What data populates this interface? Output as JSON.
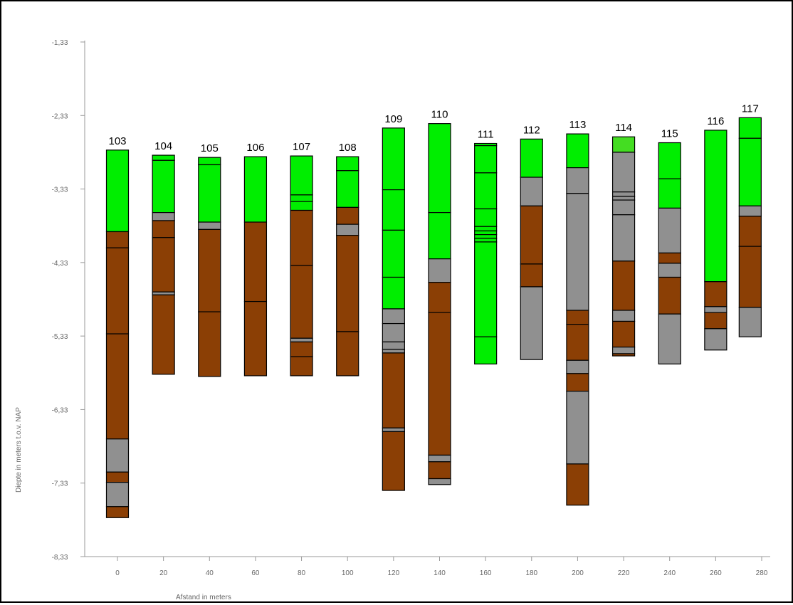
{
  "chart_data": {
    "type": "bar",
    "xlabel": "Afstand in meters",
    "ylabel": "Diepte in meters t.o.v. NAP",
    "y_ticks": [
      "-1,33",
      "-2,33",
      "-3,33",
      "-4,33",
      "-5,33",
      "-6,33",
      "-7,33",
      "-8,33"
    ],
    "x_ticks": [
      "0",
      "20",
      "40",
      "60",
      "80",
      "100",
      "120",
      "140",
      "160",
      "180",
      "200",
      "220",
      "240",
      "260",
      "280"
    ],
    "ylim": [
      -8.33,
      -1.33
    ],
    "xlim": [
      0,
      280
    ],
    "grid": false,
    "legend": "none",
    "colors": {
      "green": "#00ee00",
      "lightgreen": "#44dd22",
      "brown": "#8b3f05",
      "gray": "#909090"
    },
    "borings": [
      {
        "name": "103",
        "x": 0,
        "segments": [
          {
            "top": -2.8,
            "bottom": -3.91,
            "soil": "green"
          },
          {
            "top": -3.91,
            "bottom": -4.13,
            "soil": "brown"
          },
          {
            "top": -4.13,
            "bottom": -5.3,
            "soil": "brown"
          },
          {
            "top": -5.3,
            "bottom": -6.73,
            "soil": "brown"
          },
          {
            "top": -6.73,
            "bottom": -7.18,
            "soil": "gray"
          },
          {
            "top": -7.18,
            "bottom": -7.32,
            "soil": "brown"
          },
          {
            "top": -7.32,
            "bottom": -7.65,
            "soil": "gray"
          },
          {
            "top": -7.65,
            "bottom": -7.8,
            "soil": "brown"
          }
        ]
      },
      {
        "name": "104",
        "x": 20,
        "segments": [
          {
            "top": -2.87,
            "bottom": -2.94,
            "soil": "green"
          },
          {
            "top": -2.94,
            "bottom": -3.65,
            "soil": "green"
          },
          {
            "top": -3.65,
            "bottom": -3.76,
            "soil": "gray"
          },
          {
            "top": -3.76,
            "bottom": -3.99,
            "soil": "brown"
          },
          {
            "top": -3.99,
            "bottom": -4.73,
            "soil": "brown"
          },
          {
            "top": -4.73,
            "bottom": -4.77,
            "soil": "gray"
          },
          {
            "top": -4.77,
            "bottom": -5.85,
            "soil": "brown"
          }
        ]
      },
      {
        "name": "105",
        "x": 40,
        "segments": [
          {
            "top": -2.9,
            "bottom": -3.0,
            "soil": "green"
          },
          {
            "top": -3.0,
            "bottom": -3.78,
            "soil": "green"
          },
          {
            "top": -3.78,
            "bottom": -3.88,
            "soil": "gray"
          },
          {
            "top": -3.88,
            "bottom": -5.0,
            "soil": "brown"
          },
          {
            "top": -5.0,
            "bottom": -5.88,
            "soil": "brown"
          }
        ]
      },
      {
        "name": "106",
        "x": 60,
        "segments": [
          {
            "top": -2.89,
            "bottom": -3.78,
            "soil": "green"
          },
          {
            "top": -3.78,
            "bottom": -4.86,
            "soil": "brown"
          },
          {
            "top": -4.86,
            "bottom": -5.87,
            "soil": "brown"
          }
        ]
      },
      {
        "name": "107",
        "x": 80,
        "segments": [
          {
            "top": -2.88,
            "bottom": -3.41,
            "soil": "green"
          },
          {
            "top": -3.41,
            "bottom": -3.5,
            "soil": "green"
          },
          {
            "top": -3.5,
            "bottom": -3.62,
            "soil": "green"
          },
          {
            "top": -3.62,
            "bottom": -4.37,
            "soil": "brown"
          },
          {
            "top": -4.37,
            "bottom": -5.36,
            "soil": "brown"
          },
          {
            "top": -5.36,
            "bottom": -5.41,
            "soil": "gray"
          },
          {
            "top": -5.41,
            "bottom": -5.61,
            "soil": "brown"
          },
          {
            "top": -5.61,
            "bottom": -5.87,
            "soil": "brown"
          }
        ]
      },
      {
        "name": "108",
        "x": 100,
        "segments": [
          {
            "top": -2.89,
            "bottom": -3.08,
            "soil": "green"
          },
          {
            "top": -3.08,
            "bottom": -3.58,
            "soil": "green"
          },
          {
            "top": -3.58,
            "bottom": -3.81,
            "soil": "brown"
          },
          {
            "top": -3.81,
            "bottom": -3.96,
            "soil": "gray"
          },
          {
            "top": -3.96,
            "bottom": -5.27,
            "soil": "brown"
          },
          {
            "top": -5.27,
            "bottom": -5.87,
            "soil": "brown"
          }
        ]
      },
      {
        "name": "109",
        "x": 120,
        "segments": [
          {
            "top": -2.5,
            "bottom": -3.34,
            "soil": "green"
          },
          {
            "top": -3.34,
            "bottom": -3.89,
            "soil": "green"
          },
          {
            "top": -3.89,
            "bottom": -4.53,
            "soil": "green"
          },
          {
            "top": -4.53,
            "bottom": -4.96,
            "soil": "green"
          },
          {
            "top": -4.96,
            "bottom": -5.16,
            "soil": "gray"
          },
          {
            "top": -5.16,
            "bottom": -5.41,
            "soil": "gray"
          },
          {
            "top": -5.41,
            "bottom": -5.51,
            "soil": "gray"
          },
          {
            "top": -5.51,
            "bottom": -5.56,
            "soil": "gray"
          },
          {
            "top": -5.56,
            "bottom": -6.58,
            "soil": "brown"
          },
          {
            "top": -6.58,
            "bottom": -6.63,
            "soil": "gray"
          },
          {
            "top": -6.63,
            "bottom": -7.43,
            "soil": "brown"
          }
        ]
      },
      {
        "name": "110",
        "x": 140,
        "segments": [
          {
            "top": -2.44,
            "bottom": -3.65,
            "soil": "green"
          },
          {
            "top": -3.65,
            "bottom": -4.28,
            "soil": "green"
          },
          {
            "top": -4.28,
            "bottom": -4.6,
            "soil": "gray"
          },
          {
            "top": -4.6,
            "bottom": -5.01,
            "soil": "brown"
          },
          {
            "top": -5.01,
            "bottom": -6.95,
            "soil": "brown"
          },
          {
            "top": -6.95,
            "bottom": -7.04,
            "soil": "gray"
          },
          {
            "top": -7.04,
            "bottom": -7.27,
            "soil": "brown"
          },
          {
            "top": -7.27,
            "bottom": -7.35,
            "soil": "gray"
          }
        ]
      },
      {
        "name": "111",
        "x": 160,
        "segments": [
          {
            "top": -2.71,
            "bottom": -2.74,
            "soil": "green"
          },
          {
            "top": -2.74,
            "bottom": -3.11,
            "soil": "green"
          },
          {
            "top": -3.11,
            "bottom": -3.6,
            "soil": "green"
          },
          {
            "top": -3.6,
            "bottom": -3.84,
            "soil": "green"
          },
          {
            "top": -3.84,
            "bottom": -3.9,
            "soil": "green"
          },
          {
            "top": -3.9,
            "bottom": -3.95,
            "soil": "green"
          },
          {
            "top": -3.95,
            "bottom": -4.0,
            "soil": "green"
          },
          {
            "top": -4.0,
            "bottom": -4.05,
            "soil": "green"
          },
          {
            "top": -4.05,
            "bottom": -5.34,
            "soil": "green"
          },
          {
            "top": -5.34,
            "bottom": -5.71,
            "soil": "green"
          }
        ]
      },
      {
        "name": "112",
        "x": 180,
        "segments": [
          {
            "top": -2.65,
            "bottom": -3.17,
            "soil": "green"
          },
          {
            "top": -3.17,
            "bottom": -3.56,
            "soil": "gray"
          },
          {
            "top": -3.56,
            "bottom": -4.35,
            "soil": "brown"
          },
          {
            "top": -4.35,
            "bottom": -4.66,
            "soil": "brown"
          },
          {
            "top": -4.66,
            "bottom": -5.65,
            "soil": "gray"
          }
        ]
      },
      {
        "name": "113",
        "x": 200,
        "segments": [
          {
            "top": -2.58,
            "bottom": -3.04,
            "soil": "green"
          },
          {
            "top": -3.04,
            "bottom": -3.39,
            "soil": "gray"
          },
          {
            "top": -3.39,
            "bottom": -4.98,
            "soil": "gray"
          },
          {
            "top": -4.98,
            "bottom": -5.17,
            "soil": "brown"
          },
          {
            "top": -5.17,
            "bottom": -5.66,
            "soil": "brown"
          },
          {
            "top": -5.66,
            "bottom": -5.84,
            "soil": "gray"
          },
          {
            "top": -5.84,
            "bottom": -6.08,
            "soil": "brown"
          },
          {
            "top": -6.08,
            "bottom": -7.07,
            "soil": "gray"
          },
          {
            "top": -7.07,
            "bottom": -7.63,
            "soil": "brown"
          }
        ]
      },
      {
        "name": "114",
        "x": 220,
        "segments": [
          {
            "top": -2.62,
            "bottom": -2.83,
            "soil": "lightgreen"
          },
          {
            "top": -2.83,
            "bottom": -3.37,
            "soil": "gray"
          },
          {
            "top": -3.37,
            "bottom": -3.43,
            "soil": "gray"
          },
          {
            "top": -3.43,
            "bottom": -3.48,
            "soil": "gray"
          },
          {
            "top": -3.48,
            "bottom": -3.68,
            "soil": "gray"
          },
          {
            "top": -3.68,
            "bottom": -4.31,
            "soil": "gray"
          },
          {
            "top": -4.31,
            "bottom": -4.98,
            "soil": "brown"
          },
          {
            "top": -4.98,
            "bottom": -5.13,
            "soil": "gray"
          },
          {
            "top": -5.13,
            "bottom": -5.48,
            "soil": "brown"
          },
          {
            "top": -5.48,
            "bottom": -5.57,
            "soil": "gray"
          },
          {
            "top": -5.57,
            "bottom": -5.6,
            "soil": "brown"
          }
        ]
      },
      {
        "name": "115",
        "x": 240,
        "segments": [
          {
            "top": -2.7,
            "bottom": -3.19,
            "soil": "green"
          },
          {
            "top": -3.19,
            "bottom": -3.59,
            "soil": "green"
          },
          {
            "top": -3.59,
            "bottom": -4.2,
            "soil": "gray"
          },
          {
            "top": -4.2,
            "bottom": -4.34,
            "soil": "brown"
          },
          {
            "top": -4.34,
            "bottom": -4.53,
            "soil": "gray"
          },
          {
            "top": -4.53,
            "bottom": -5.03,
            "soil": "brown"
          },
          {
            "top": -5.03,
            "bottom": -5.71,
            "soil": "gray"
          }
        ]
      },
      {
        "name": "116",
        "x": 260,
        "segments": [
          {
            "top": -2.53,
            "bottom": -4.59,
            "soil": "green"
          },
          {
            "top": -4.59,
            "bottom": -4.93,
            "soil": "brown"
          },
          {
            "top": -4.93,
            "bottom": -5.01,
            "soil": "gray"
          },
          {
            "top": -5.01,
            "bottom": -5.23,
            "soil": "brown"
          },
          {
            "top": -5.23,
            "bottom": -5.52,
            "soil": "gray"
          }
        ]
      },
      {
        "name": "117",
        "x": 275,
        "segments": [
          {
            "top": -2.36,
            "bottom": -2.64,
            "soil": "green"
          },
          {
            "top": -2.64,
            "bottom": -3.56,
            "soil": "green"
          },
          {
            "top": -3.56,
            "bottom": -3.7,
            "soil": "gray"
          },
          {
            "top": -3.7,
            "bottom": -4.11,
            "soil": "brown"
          },
          {
            "top": -4.11,
            "bottom": -4.94,
            "soil": "brown"
          },
          {
            "top": -4.94,
            "bottom": -5.34,
            "soil": "gray"
          }
        ]
      }
    ]
  }
}
